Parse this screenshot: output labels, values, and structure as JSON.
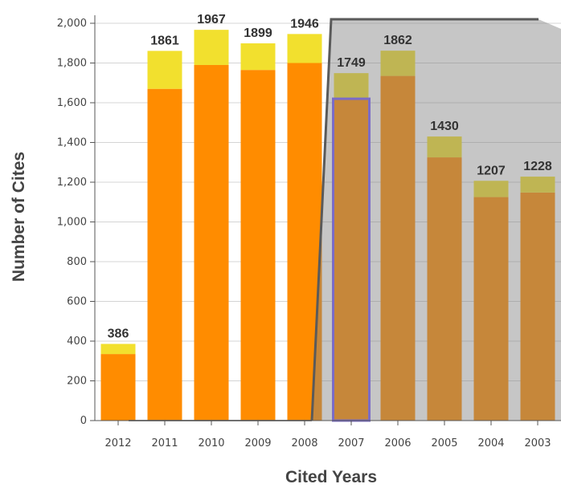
{
  "chart_data": {
    "type": "bar",
    "stacked": true,
    "xlabel": "Cited Years",
    "ylabel": "Number of Cites",
    "ylim": [
      0,
      2000
    ],
    "y_ticks": [
      0,
      200,
      400,
      600,
      800,
      1000,
      1200,
      1400,
      1600,
      1800,
      2000
    ],
    "grid": true,
    "categories": [
      "2012",
      "2011",
      "2010",
      "2009",
      "2008",
      "2007",
      "2006",
      "2005",
      "2004",
      "2003"
    ],
    "totals": [
      386,
      1861,
      1967,
      1899,
      1946,
      1749,
      1862,
      1430,
      1207,
      1228
    ],
    "series": [
      {
        "values": [
          335,
          1670,
          1790,
          1765,
          1800,
          1620,
          1735,
          1325,
          1125,
          1148
        ]
      },
      {
        "values": [
          51,
          191,
          177,
          134,
          146,
          129,
          127,
          105,
          82,
          80
        ]
      }
    ],
    "highlighted_category": "2007",
    "colors": {
      "bar_bottom": "#ff8c00",
      "bar_top": "#f2e02e",
      "highlight_outline": "#7a6cc8",
      "overlay": "#808080",
      "overlay_edge": "#5a5a5a",
      "grid": "#d4d4d4",
      "axis": "#555555"
    }
  }
}
